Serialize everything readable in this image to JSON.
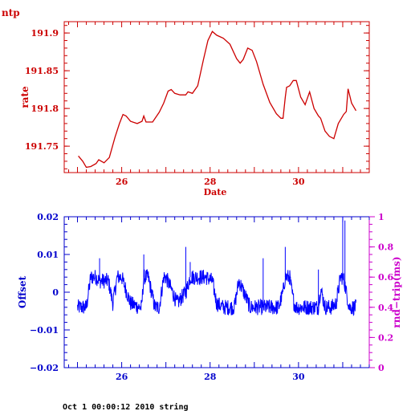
{
  "colors": {
    "top": "#cc0000",
    "bottom": "#0000cc",
    "right_axis": "#cc00cc",
    "trace": "#0000ff"
  },
  "footer": "Oct  1 00:00:12 2010 string",
  "chart_data": [
    {
      "type": "line",
      "title": "ntp",
      "xlabel": "Date",
      "ylabel": "rate",
      "xlim": [
        24.7,
        31.6
      ],
      "ylim": [
        191.715,
        191.915
      ],
      "grid": false,
      "x_ticks": [
        "26",
        "28",
        "30"
      ],
      "y_ticks": [
        "191.75",
        "191.8",
        "191.85",
        "191.9"
      ],
      "series": [
        {
          "x": [
            25.02,
            25.12,
            25.2,
            25.3,
            25.42,
            25.48,
            25.6,
            25.72,
            25.85,
            25.95,
            26.03,
            26.1,
            26.2,
            26.35,
            26.46,
            26.5,
            26.55,
            26.7,
            26.85,
            26.95,
            27.05,
            27.12,
            27.2,
            27.32,
            27.45,
            27.5,
            27.6,
            27.72,
            27.85,
            27.95,
            28.05,
            28.15,
            28.3,
            28.45,
            28.6,
            28.68,
            28.75,
            28.85,
            28.95,
            29.05,
            29.2,
            29.35,
            29.5,
            29.6,
            29.65,
            29.7,
            29.73,
            29.8,
            29.88,
            29.95,
            30.05,
            30.15,
            30.25,
            30.35,
            30.45,
            30.5,
            30.6,
            30.7,
            30.8,
            30.9,
            30.95,
            31.02,
            31.08,
            31.12,
            31.2,
            31.3
          ],
          "values": [
            191.737,
            191.73,
            191.722,
            191.723,
            191.727,
            191.732,
            191.728,
            191.735,
            191.762,
            191.78,
            191.792,
            191.79,
            191.783,
            191.78,
            191.783,
            191.79,
            191.782,
            191.782,
            191.795,
            191.807,
            191.823,
            191.825,
            191.82,
            191.818,
            191.818,
            191.822,
            191.82,
            191.83,
            191.865,
            191.89,
            191.902,
            191.897,
            191.893,
            191.885,
            191.866,
            191.86,
            191.865,
            191.88,
            191.877,
            191.862,
            191.832,
            191.808,
            191.793,
            191.787,
            191.787,
            191.815,
            191.828,
            191.83,
            191.837,
            191.837,
            191.815,
            191.805,
            191.822,
            191.8,
            191.79,
            191.787,
            191.77,
            191.763,
            191.76,
            191.78,
            191.785,
            191.792,
            191.796,
            191.826,
            191.807,
            191.797
          ]
        }
      ]
    },
    {
      "type": "line",
      "title": "",
      "xlabel": "",
      "ylabel": "Offset",
      "y2label": "rnd−trip(ms)",
      "xlim": [
        24.7,
        31.6
      ],
      "ylim": [
        -0.02,
        0.02
      ],
      "y2lim": [
        0,
        1
      ],
      "grid": false,
      "x_ticks": [
        "26",
        "28",
        "30"
      ],
      "y_ticks": [
        "−0.02",
        "−0.01",
        "0",
        "0.01",
        "0.02"
      ],
      "y2_ticks": [
        "0",
        "0.2",
        "0.4",
        "0.6",
        "0.8",
        "1"
      ],
      "series": [
        {
          "x": [
            24.9,
            25.05,
            25.2,
            25.3,
            25.42,
            25.5,
            25.7,
            25.75,
            25.8,
            25.9,
            26.0,
            26.2,
            26.4,
            26.45,
            26.5,
            26.6,
            26.75,
            26.85,
            26.95,
            27.0,
            27.15,
            27.25,
            27.45,
            27.55,
            27.7,
            27.9,
            28.05,
            28.15,
            28.3,
            28.45,
            28.55,
            28.65,
            28.8,
            28.9,
            29.05,
            29.2,
            29.4,
            29.55,
            29.65,
            29.7,
            29.75,
            29.8,
            29.85,
            29.9,
            29.95,
            30.0,
            30.15,
            30.25,
            30.45,
            30.5,
            30.6,
            30.75,
            30.85,
            30.95,
            31.0,
            31.05,
            31.08,
            31.15,
            31.2,
            31.35,
            31.45
          ],
          "values": [
            -0.004,
            -0.004,
            -0.004,
            0.004,
            0.004,
            0.003,
            0.003,
            0.0,
            -0.003,
            0.004,
            0.004,
            -0.003,
            -0.004,
            -0.004,
            0.004,
            0.004,
            -0.004,
            -0.004,
            0.004,
            0.004,
            0.0,
            -0.003,
            0.0,
            0.004,
            0.004,
            0.004,
            0.003,
            -0.003,
            -0.004,
            -0.004,
            -0.004,
            0.003,
            -0.001,
            -0.004,
            -0.004,
            -0.004,
            -0.004,
            -0.004,
            0.0,
            0.004,
            0.004,
            0.004,
            0.0,
            -0.003,
            -0.004,
            -0.004,
            -0.004,
            -0.004,
            -0.004,
            0.001,
            -0.004,
            -0.004,
            -0.003,
            0.004,
            0.004,
            0.002,
            0.0,
            -0.004,
            -0.004,
            -0.004,
            -0.004
          ],
          "noise": 0.0021,
          "spikes": [
            {
              "x": 25.5,
              "value": 0.009
            },
            {
              "x": 26.5,
              "value": 0.01
            },
            {
              "x": 27.45,
              "value": 0.012
            },
            {
              "x": 27.55,
              "value": 0.008
            },
            {
              "x": 29.7,
              "value": 0.012
            },
            {
              "x": 29.2,
              "value": 0.009
            },
            {
              "x": 30.45,
              "value": 0.006
            },
            {
              "x": 31.0,
              "value": 0.02
            },
            {
              "x": 31.05,
              "value": 0.019
            }
          ]
        }
      ]
    }
  ]
}
